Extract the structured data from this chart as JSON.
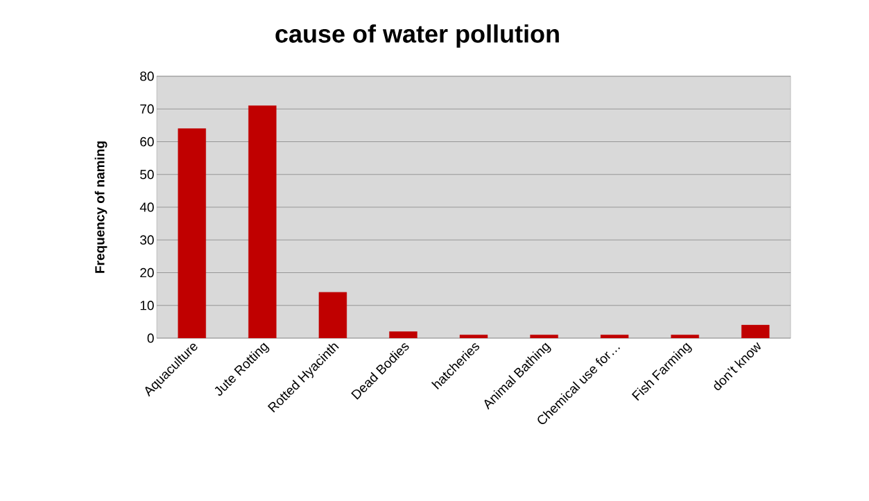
{
  "chart_data": {
    "type": "bar",
    "title": "cause of water pollution",
    "ylabel": "Frequency of naming",
    "categories": [
      "Aquaculture",
      "Jute Rotting",
      "Rotted Hyacinth",
      "Dead Bodies",
      "hatcheries",
      "Animal Bathing",
      "Chemical use for…",
      "Fish Farming",
      "don’t know"
    ],
    "values": [
      64,
      71,
      14,
      2,
      1,
      1,
      1,
      1,
      4
    ],
    "color": "#c00000",
    "ylim": [
      0,
      80
    ],
    "yticks": [
      0,
      10,
      20,
      30,
      40,
      50,
      60,
      70,
      80
    ],
    "grid": "y"
  }
}
